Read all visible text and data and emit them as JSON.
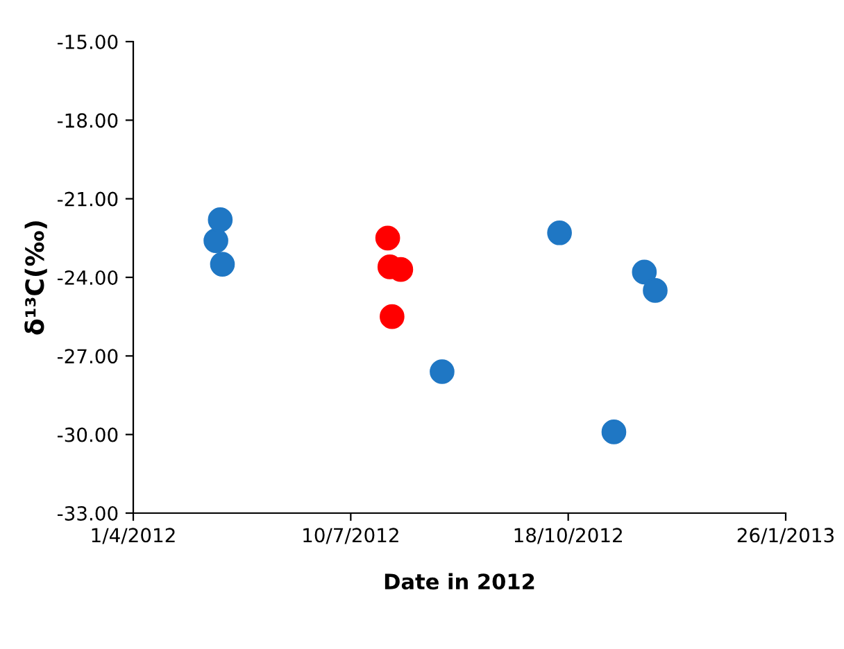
{
  "chart_data": {
    "type": "scatter",
    "xlabel": "Date in 2012",
    "ylabel": "δ¹³C(‰)",
    "series": [
      {
        "color": "#1f77c4",
        "x": [
          "2012-05-09",
          "2012-05-11",
          "2012-05-12",
          "2012-08-21",
          "2012-10-14",
          "2012-11-08",
          "2012-11-22",
          "2012-11-27"
        ],
        "values": [
          -22.6,
          -21.8,
          -23.5,
          -27.6,
          -22.3,
          -29.9,
          -23.8,
          -24.5
        ]
      },
      {
        "color": "#ff0000",
        "x": [
          "2012-07-27",
          "2012-07-28",
          "2012-08-02",
          "2012-07-29"
        ],
        "values": [
          -22.5,
          -23.6,
          -23.7,
          -25.5
        ]
      }
    ],
    "xlim": [
      "2012-04-01",
      "2013-01-26"
    ],
    "xticks": [
      {
        "value": "2012-04-01",
        "label": "1/4/2012"
      },
      {
        "value": "2012-07-10",
        "label": "10/7/2012"
      },
      {
        "value": "2012-10-18",
        "label": "18/10/2012"
      },
      {
        "value": "2013-01-26",
        "label": "26/1/2013"
      }
    ],
    "ylim": [
      -33,
      -15
    ],
    "yticks": [
      {
        "value": -33,
        "label": "-33.00"
      },
      {
        "value": -30,
        "label": "-30.00"
      },
      {
        "value": -27,
        "label": "-27.00"
      },
      {
        "value": -24,
        "label": "-24.00"
      },
      {
        "value": -21,
        "label": "-21.00"
      },
      {
        "value": -18,
        "label": "-18.00"
      },
      {
        "value": -15,
        "label": "-15.00"
      }
    ],
    "grid": false,
    "marker": "circle"
  }
}
